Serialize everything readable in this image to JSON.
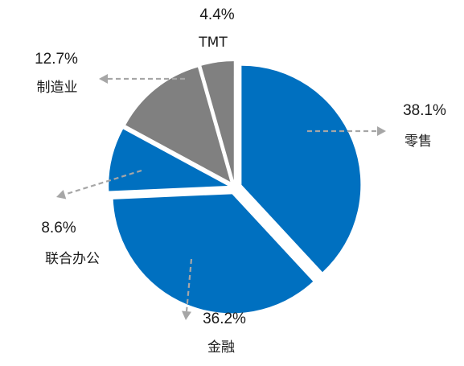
{
  "chart_data": {
    "type": "pie",
    "start_angle_deg": 0,
    "direction": "clockwise",
    "exploded": true,
    "slices": [
      {
        "label": "零售",
        "value": 38.1,
        "value_label": "38.1%",
        "color": "#0070C0",
        "label_side": "right"
      },
      {
        "label": "金融",
        "value": 36.2,
        "value_label": "36.2%",
        "color": "#0070C0",
        "label_side": "bottom"
      },
      {
        "label": "联合办公",
        "value": 8.6,
        "value_label": "8.6%",
        "color": "#0070C0",
        "label_side": "left"
      },
      {
        "label": "制造业",
        "value": 12.7,
        "value_label": "12.7%",
        "color": "#808080",
        "label_side": "top-left"
      },
      {
        "label": "TMT",
        "value": 4.4,
        "value_label": "4.4%",
        "color": "#808080",
        "label_side": "top"
      }
    ]
  }
}
